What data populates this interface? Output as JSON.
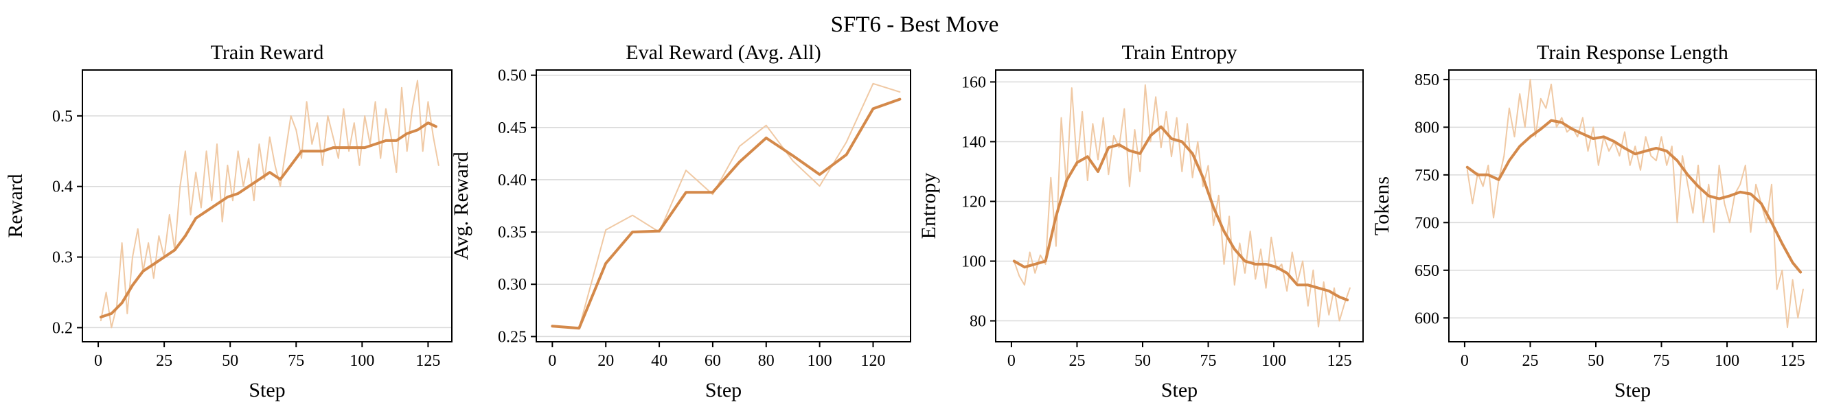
{
  "suptitle": "SFT6 - Best Move",
  "colors": {
    "line": "#d4894a",
    "raw": "#f0c9a4",
    "grid": "#d9d9d9",
    "axis": "#000000"
  },
  "chart_data": [
    {
      "type": "line",
      "title": "Train Reward",
      "xlabel": "Step",
      "ylabel": "Reward",
      "xlim": [
        -6,
        134
      ],
      "ylim": [
        0.18,
        0.565
      ],
      "xticks": [
        0,
        25,
        50,
        75,
        100,
        125
      ],
      "xtick_labels": [
        "0",
        "25",
        "50",
        "75",
        "100",
        "125"
      ],
      "yticks": [
        0.2,
        0.3,
        0.4,
        0.5
      ],
      "ytick_labels": [
        "0.2",
        "0.3",
        "0.4",
        "0.5"
      ],
      "grid": "horizontal",
      "series": [
        {
          "name": "raw",
          "style": "thin-light",
          "x": [
            1,
            3,
            5,
            7,
            9,
            11,
            13,
            15,
            17,
            19,
            21,
            23,
            25,
            27,
            29,
            31,
            33,
            35,
            37,
            39,
            41,
            43,
            45,
            47,
            49,
            51,
            53,
            55,
            57,
            59,
            61,
            63,
            65,
            67,
            69,
            71,
            73,
            75,
            77,
            79,
            81,
            83,
            85,
            87,
            89,
            91,
            93,
            95,
            97,
            99,
            101,
            103,
            105,
            107,
            109,
            111,
            113,
            115,
            117,
            119,
            121,
            123,
            125,
            127,
            129
          ],
          "y": [
            0.21,
            0.25,
            0.2,
            0.23,
            0.32,
            0.22,
            0.3,
            0.34,
            0.28,
            0.32,
            0.27,
            0.33,
            0.3,
            0.36,
            0.31,
            0.4,
            0.45,
            0.36,
            0.42,
            0.37,
            0.45,
            0.38,
            0.46,
            0.35,
            0.43,
            0.38,
            0.45,
            0.4,
            0.44,
            0.38,
            0.46,
            0.41,
            0.47,
            0.43,
            0.4,
            0.45,
            0.5,
            0.48,
            0.44,
            0.52,
            0.46,
            0.49,
            0.43,
            0.5,
            0.47,
            0.44,
            0.51,
            0.45,
            0.49,
            0.43,
            0.5,
            0.46,
            0.52,
            0.44,
            0.51,
            0.47,
            0.42,
            0.54,
            0.45,
            0.51,
            0.55,
            0.45,
            0.52,
            0.47,
            0.43
          ]
        },
        {
          "name": "smoothed",
          "style": "thick",
          "x": [
            1,
            5,
            9,
            13,
            17,
            21,
            25,
            29,
            33,
            37,
            41,
            45,
            49,
            53,
            57,
            61,
            65,
            69,
            73,
            77,
            81,
            85,
            89,
            93,
            97,
            101,
            105,
            109,
            113,
            117,
            121,
            125,
            128
          ],
          "y": [
            0.215,
            0.22,
            0.235,
            0.26,
            0.28,
            0.29,
            0.3,
            0.31,
            0.33,
            0.355,
            0.365,
            0.375,
            0.385,
            0.39,
            0.4,
            0.41,
            0.42,
            0.41,
            0.43,
            0.45,
            0.45,
            0.45,
            0.455,
            0.455,
            0.455,
            0.455,
            0.46,
            0.465,
            0.465,
            0.475,
            0.48,
            0.49,
            0.485
          ]
        }
      ]
    },
    {
      "type": "line",
      "title": "Eval Reward (Avg. All)",
      "xlabel": "Step",
      "ylabel": "Avg. Reward",
      "xlim": [
        -6,
        134
      ],
      "ylim": [
        0.245,
        0.505
      ],
      "xticks": [
        0,
        20,
        40,
        60,
        80,
        100,
        120
      ],
      "xtick_labels": [
        "0",
        "20",
        "40",
        "60",
        "80",
        "100",
        "120"
      ],
      "yticks": [
        0.25,
        0.3,
        0.35,
        0.4,
        0.45,
        0.5
      ],
      "ytick_labels": [
        "0.25",
        "0.30",
        "0.35",
        "0.40",
        "0.45",
        "0.50"
      ],
      "grid": "horizontal",
      "series": [
        {
          "name": "raw",
          "style": "thin-light",
          "x": [
            0,
            10,
            20,
            30,
            40,
            50,
            60,
            70,
            80,
            90,
            100,
            110,
            120,
            130
          ],
          "y": [
            0.26,
            0.258,
            0.352,
            0.366,
            0.35,
            0.409,
            0.386,
            0.432,
            0.452,
            0.418,
            0.394,
            0.436,
            0.492,
            0.484
          ]
        },
        {
          "name": "smoothed",
          "style": "thick",
          "x": [
            0,
            10,
            20,
            30,
            40,
            50,
            60,
            70,
            80,
            90,
            100,
            110,
            120,
            130
          ],
          "y": [
            0.26,
            0.258,
            0.32,
            0.35,
            0.351,
            0.388,
            0.388,
            0.417,
            0.44,
            0.423,
            0.405,
            0.424,
            0.468,
            0.477
          ]
        }
      ]
    },
    {
      "type": "line",
      "title": "Train Entropy",
      "xlabel": "Step",
      "ylabel": "Entropy",
      "xlim": [
        -6,
        134
      ],
      "ylim": [
        73,
        164
      ],
      "xticks": [
        0,
        25,
        50,
        75,
        100,
        125
      ],
      "xtick_labels": [
        "0",
        "25",
        "50",
        "75",
        "100",
        "125"
      ],
      "yticks": [
        80,
        100,
        120,
        140,
        160
      ],
      "ytick_labels": [
        "80",
        "100",
        "120",
        "140",
        "160"
      ],
      "grid": "horizontal",
      "series": [
        {
          "name": "raw",
          "style": "thin-light",
          "x": [
            1,
            3,
            5,
            7,
            9,
            11,
            13,
            15,
            17,
            19,
            21,
            23,
            25,
            27,
            29,
            31,
            33,
            35,
            37,
            39,
            41,
            43,
            45,
            47,
            49,
            51,
            53,
            55,
            57,
            59,
            61,
            63,
            65,
            67,
            69,
            71,
            73,
            75,
            77,
            79,
            81,
            83,
            85,
            87,
            89,
            91,
            93,
            95,
            97,
            99,
            101,
            103,
            105,
            107,
            109,
            111,
            113,
            115,
            117,
            119,
            121,
            123,
            125,
            127,
            129
          ],
          "y": [
            100,
            95,
            92,
            103,
            96,
            102,
            99,
            128,
            105,
            148,
            125,
            158,
            132,
            150,
            127,
            146,
            134,
            148,
            129,
            142,
            138,
            151,
            125,
            144,
            130,
            159,
            140,
            155,
            138,
            150,
            135,
            148,
            130,
            146,
            128,
            140,
            125,
            132,
            112,
            122,
            99,
            115,
            92,
            106,
            96,
            110,
            94,
            104,
            91,
            108,
            97,
            99,
            90,
            103,
            93,
            100,
            85,
            97,
            78,
            93,
            82,
            91,
            80,
            86,
            91
          ]
        },
        {
          "name": "smoothed",
          "style": "thick",
          "x": [
            1,
            5,
            9,
            13,
            17,
            21,
            25,
            29,
            33,
            37,
            41,
            45,
            49,
            53,
            57,
            61,
            65,
            69,
            73,
            77,
            81,
            85,
            89,
            93,
            97,
            101,
            105,
            109,
            113,
            117,
            121,
            125,
            128
          ],
          "y": [
            100,
            98,
            99,
            100,
            115,
            127,
            133,
            135,
            130,
            138,
            139,
            137,
            136,
            142,
            145,
            141,
            140,
            136,
            128,
            118,
            110,
            104,
            100,
            99,
            99,
            98,
            96,
            92,
            92,
            91,
            90,
            88,
            87
          ]
        }
      ]
    },
    {
      "type": "line",
      "title": "Train Response Length",
      "xlabel": "Step",
      "ylabel": "Tokens",
      "xlim": [
        -6,
        134
      ],
      "ylim": [
        575,
        860
      ],
      "xticks": [
        0,
        25,
        50,
        75,
        100,
        125
      ],
      "xtick_labels": [
        "0",
        "25",
        "50",
        "75",
        "100",
        "125"
      ],
      "yticks": [
        600,
        650,
        700,
        750,
        800,
        850
      ],
      "ytick_labels": [
        "600",
        "650",
        "700",
        "750",
        "800",
        "850"
      ],
      "grid": "horizontal",
      "series": [
        {
          "name": "raw",
          "style": "thin-light",
          "x": [
            1,
            3,
            5,
            7,
            9,
            11,
            13,
            15,
            17,
            19,
            21,
            23,
            25,
            27,
            29,
            31,
            33,
            35,
            37,
            39,
            41,
            43,
            45,
            47,
            49,
            51,
            53,
            55,
            57,
            59,
            61,
            63,
            65,
            67,
            69,
            71,
            73,
            75,
            77,
            79,
            81,
            83,
            85,
            87,
            89,
            91,
            93,
            95,
            97,
            99,
            101,
            103,
            105,
            107,
            109,
            111,
            113,
            115,
            117,
            119,
            121,
            123,
            125,
            127,
            129
          ],
          "y": [
            755,
            720,
            752,
            738,
            760,
            705,
            745,
            770,
            820,
            790,
            835,
            800,
            850,
            790,
            830,
            820,
            845,
            800,
            810,
            795,
            800,
            790,
            810,
            775,
            800,
            760,
            790,
            775,
            785,
            770,
            795,
            760,
            780,
            755,
            790,
            770,
            765,
            790,
            760,
            780,
            700,
            770,
            740,
            710,
            760,
            700,
            740,
            690,
            760,
            720,
            700,
            730,
            740,
            760,
            690,
            740,
            720,
            700,
            740,
            630,
            650,
            590,
            640,
            600,
            630
          ]
        },
        {
          "name": "smoothed",
          "style": "thick",
          "x": [
            1,
            5,
            9,
            13,
            17,
            21,
            25,
            29,
            33,
            37,
            41,
            45,
            49,
            53,
            57,
            61,
            65,
            69,
            73,
            77,
            81,
            85,
            89,
            93,
            97,
            101,
            105,
            109,
            113,
            117,
            121,
            125,
            128
          ],
          "y": [
            758,
            750,
            750,
            745,
            765,
            780,
            790,
            798,
            807,
            805,
            798,
            793,
            788,
            790,
            785,
            778,
            772,
            775,
            778,
            775,
            765,
            750,
            738,
            728,
            725,
            728,
            732,
            730,
            720,
            700,
            678,
            658,
            648
          ]
        }
      ]
    }
  ]
}
